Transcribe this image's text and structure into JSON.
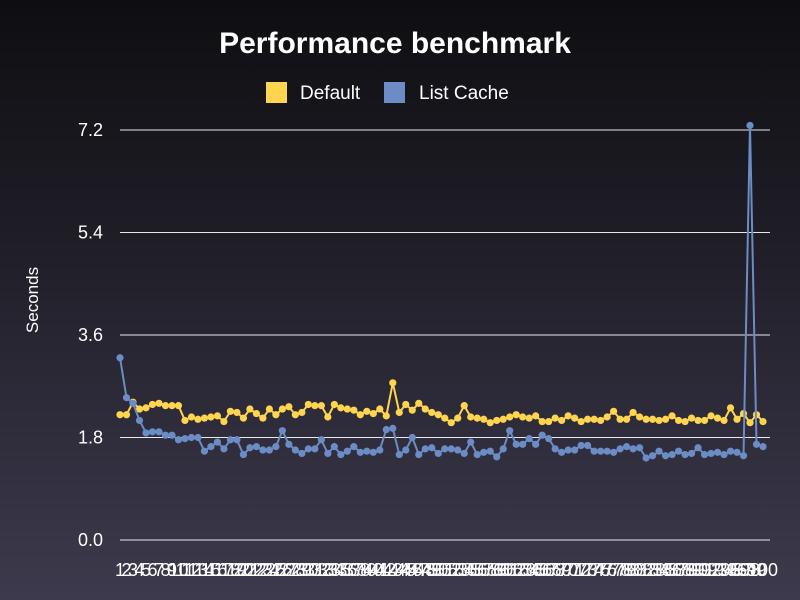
{
  "chart_data": {
    "type": "line",
    "title": "Performance benchmark",
    "ylabel": "Seconds",
    "xlabel": "",
    "ylim": [
      0,
      7.2
    ],
    "yticks": [
      0.0,
      1.8,
      3.6,
      5.4,
      7.2
    ],
    "ytick_labels": [
      "0.0",
      "1.8",
      "3.6",
      "5.4",
      "7.2"
    ],
    "grid": true,
    "legend": "top-center",
    "x": [
      1,
      2,
      3,
      4,
      5,
      6,
      7,
      8,
      9,
      10,
      11,
      12,
      13,
      14,
      15,
      16,
      17,
      18,
      19,
      20,
      21,
      22,
      23,
      24,
      25,
      26,
      27,
      28,
      29,
      30,
      31,
      32,
      33,
      34,
      35,
      36,
      37,
      38,
      39,
      40,
      41,
      42,
      43,
      44,
      45,
      46,
      47,
      48,
      49,
      50,
      51,
      52,
      53,
      54,
      55,
      56,
      57,
      58,
      59,
      60,
      61,
      62,
      63,
      64,
      65,
      66,
      67,
      68,
      69,
      70,
      71,
      72,
      73,
      74,
      75,
      76,
      77,
      78,
      79,
      80,
      81,
      82,
      83,
      84,
      85,
      86,
      87,
      88,
      89,
      90,
      91,
      92,
      93,
      94,
      95,
      96,
      97,
      98,
      99,
      100
    ],
    "series": [
      {
        "name": "Default",
        "color": "#ffd54f",
        "values": [
          2.2,
          2.2,
          2.42,
          2.3,
          2.32,
          2.38,
          2.4,
          2.36,
          2.36,
          2.36,
          2.1,
          2.16,
          2.12,
          2.14,
          2.16,
          2.18,
          2.08,
          2.26,
          2.24,
          2.14,
          2.3,
          2.22,
          2.14,
          2.3,
          2.2,
          2.3,
          2.34,
          2.2,
          2.24,
          2.38,
          2.36,
          2.36,
          2.16,
          2.38,
          2.32,
          2.3,
          2.28,
          2.2,
          2.26,
          2.22,
          2.3,
          2.18,
          2.76,
          2.24,
          2.38,
          2.28,
          2.4,
          2.3,
          2.24,
          2.2,
          2.14,
          2.06,
          2.14,
          2.36,
          2.16,
          2.14,
          2.12,
          2.06,
          2.1,
          2.12,
          2.16,
          2.2,
          2.16,
          2.14,
          2.18,
          2.08,
          2.08,
          2.14,
          2.1,
          2.18,
          2.14,
          2.08,
          2.12,
          2.12,
          2.1,
          2.16,
          2.26,
          2.12,
          2.12,
          2.24,
          2.16,
          2.12,
          2.12,
          2.1,
          2.12,
          2.18,
          2.1,
          2.08,
          2.14,
          2.1,
          2.1,
          2.18,
          2.14,
          2.1,
          2.32,
          2.12,
          2.22,
          2.06,
          2.2,
          2.08
        ]
      },
      {
        "name": "List Cache",
        "color": "#6b8cc4",
        "values": [
          3.2,
          2.5,
          2.4,
          2.1,
          1.88,
          1.9,
          1.9,
          1.84,
          1.84,
          1.76,
          1.78,
          1.8,
          1.8,
          1.56,
          1.64,
          1.72,
          1.6,
          1.76,
          1.76,
          1.5,
          1.62,
          1.64,
          1.58,
          1.58,
          1.64,
          1.92,
          1.68,
          1.58,
          1.52,
          1.6,
          1.6,
          1.76,
          1.52,
          1.64,
          1.5,
          1.56,
          1.64,
          1.54,
          1.56,
          1.54,
          1.58,
          1.94,
          1.96,
          1.5,
          1.58,
          1.8,
          1.5,
          1.6,
          1.62,
          1.52,
          1.6,
          1.6,
          1.58,
          1.52,
          1.72,
          1.5,
          1.54,
          1.56,
          1.46,
          1.6,
          1.92,
          1.68,
          1.68,
          1.78,
          1.68,
          1.84,
          1.78,
          1.6,
          1.54,
          1.58,
          1.58,
          1.66,
          1.66,
          1.56,
          1.56,
          1.56,
          1.54,
          1.6,
          1.64,
          1.6,
          1.62,
          1.44,
          1.48,
          1.56,
          1.48,
          1.5,
          1.56,
          1.5,
          1.52,
          1.62,
          1.5,
          1.52,
          1.54,
          1.5,
          1.56,
          1.54,
          1.48,
          7.28,
          1.68,
          1.64
        ]
      }
    ]
  }
}
